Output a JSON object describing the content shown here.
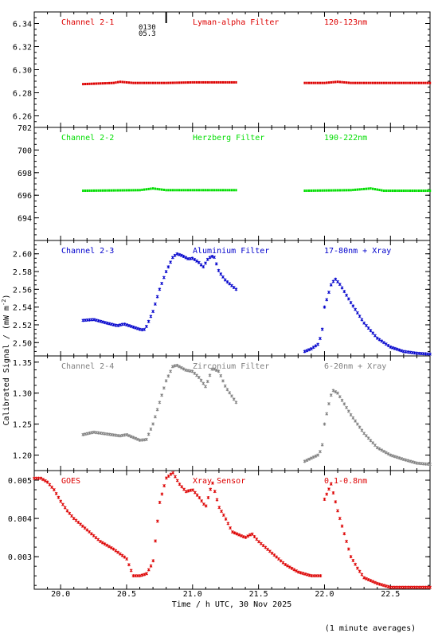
{
  "figure": {
    "ylabel": "Calibrated Signal / (mW m",
    "ylabel_sup": "-2",
    "ylabel_end": ")",
    "xlabel": "Time / h UTC, 30 Nov 2025",
    "footnote": "(1 minute averages)",
    "orbit_label_1": "0130",
    "orbit_label_2": "05.3",
    "orbit_time": 20.8
  },
  "chart_data": [
    {
      "type": "scatter",
      "channel": "Channel 2-1",
      "filter": "Lyman-alpha Filter",
      "band": "120-123nm",
      "color": "#dd0000",
      "xlim": [
        19.8,
        22.8
      ],
      "ylim": [
        6.25,
        6.35
      ],
      "yticks": [
        "6.26",
        "6.28",
        "6.30",
        "6.32",
        "6.34"
      ],
      "segments": [
        {
          "x0": 20.17,
          "x1": 21.33,
          "points": [
            [
              20.17,
              6.2875
            ],
            [
              20.4,
              6.2885
            ],
            [
              20.45,
              6.2895
            ],
            [
              20.55,
              6.2885
            ],
            [
              20.8,
              6.2885
            ],
            [
              21.0,
              6.289
            ],
            [
              21.33,
              6.289
            ]
          ]
        },
        {
          "x0": 21.85,
          "x1": 22.8,
          "points": [
            [
              21.85,
              6.2885
            ],
            [
              22.0,
              6.2885
            ],
            [
              22.1,
              6.2895
            ],
            [
              22.2,
              6.2885
            ],
            [
              22.8,
              6.2885
            ]
          ]
        }
      ]
    },
    {
      "type": "scatter",
      "channel": "Channel 2-2",
      "filter": "Herzberg Filter",
      "band": "190-222nm",
      "color": "#00dd00",
      "xlim": [
        19.8,
        22.8
      ],
      "ylim": [
        692,
        702
      ],
      "yticks": [
        "694",
        "696",
        "698",
        "700",
        "702"
      ],
      "segments": [
        {
          "x0": 20.17,
          "x1": 21.33,
          "points": [
            [
              20.17,
              696.4
            ],
            [
              20.6,
              696.45
            ],
            [
              20.7,
              696.6
            ],
            [
              20.8,
              696.45
            ],
            [
              21.33,
              696.45
            ]
          ]
        },
        {
          "x0": 21.85,
          "x1": 22.8,
          "points": [
            [
              21.85,
              696.4
            ],
            [
              22.2,
              696.45
            ],
            [
              22.35,
              696.6
            ],
            [
              22.45,
              696.4
            ],
            [
              22.8,
              696.4
            ]
          ]
        }
      ]
    },
    {
      "type": "scatter",
      "channel": "Channel 2-3",
      "filter": "Aluminium Filter",
      "band": "17-80nm + Xray",
      "color": "#0000cc",
      "xlim": [
        19.8,
        22.8
      ],
      "ylim": [
        2.485,
        2.615
      ],
      "yticks": [
        "2.50",
        "2.52",
        "2.54",
        "2.56",
        "2.58",
        "2.60"
      ],
      "segments": [
        {
          "x0": 20.17,
          "x1": 21.33,
          "points": [
            [
              20.17,
              2.525
            ],
            [
              20.25,
              2.526
            ],
            [
              20.35,
              2.522
            ],
            [
              20.43,
              2.519
            ],
            [
              20.48,
              2.521
            ],
            [
              20.52,
              2.519
            ],
            [
              20.6,
              2.515
            ],
            [
              20.63,
              2.514
            ],
            [
              20.65,
              2.518
            ],
            [
              20.7,
              2.535
            ],
            [
              20.75,
              2.56
            ],
            [
              20.8,
              2.58
            ],
            [
              20.85,
              2.596
            ],
            [
              20.88,
              2.6
            ],
            [
              20.92,
              2.598
            ],
            [
              20.97,
              2.594
            ],
            [
              21.0,
              2.595
            ],
            [
              21.05,
              2.59
            ],
            [
              21.08,
              2.585
            ],
            [
              21.12,
              2.595
            ],
            [
              21.16,
              2.598
            ],
            [
              21.2,
              2.58
            ],
            [
              21.25,
              2.57
            ],
            [
              21.33,
              2.56
            ]
          ]
        },
        {
          "x0": 21.85,
          "x1": 22.8,
          "points": [
            [
              21.85,
              2.49
            ],
            [
              21.9,
              2.493
            ],
            [
              21.95,
              2.498
            ],
            [
              21.98,
              2.51
            ],
            [
              22.0,
              2.54
            ],
            [
              22.05,
              2.565
            ],
            [
              22.08,
              2.572
            ],
            [
              22.12,
              2.565
            ],
            [
              22.2,
              2.545
            ],
            [
              22.3,
              2.522
            ],
            [
              22.4,
              2.505
            ],
            [
              22.5,
              2.495
            ],
            [
              22.6,
              2.49
            ],
            [
              22.7,
              2.488
            ],
            [
              22.8,
              2.487
            ]
          ]
        }
      ]
    },
    {
      "type": "scatter",
      "channel": "Channel 2-4",
      "filter": "Zirconium Filter",
      "band": "6-20nm + Xray",
      "color": "#808080",
      "xlim": [
        19.8,
        22.8
      ],
      "ylim": [
        1.175,
        1.36
      ],
      "yticks": [
        "1.20",
        "1.25",
        "1.30",
        "1.35"
      ],
      "segments": [
        {
          "x0": 20.17,
          "x1": 21.33,
          "points": [
            [
              20.17,
              1.233
            ],
            [
              20.25,
              1.237
            ],
            [
              20.35,
              1.234
            ],
            [
              20.45,
              1.231
            ],
            [
              20.5,
              1.233
            ],
            [
              20.6,
              1.224
            ],
            [
              20.65,
              1.225
            ],
            [
              20.7,
              1.25
            ],
            [
              20.75,
              1.285
            ],
            [
              20.8,
              1.32
            ],
            [
              20.85,
              1.343
            ],
            [
              20.88,
              1.345
            ],
            [
              20.95,
              1.337
            ],
            [
              21.0,
              1.335
            ],
            [
              21.05,
              1.325
            ],
            [
              21.1,
              1.31
            ],
            [
              21.15,
              1.34
            ],
            [
              21.2,
              1.335
            ],
            [
              21.25,
              1.31
            ],
            [
              21.33,
              1.285
            ]
          ]
        },
        {
          "x0": 21.85,
          "x1": 22.8,
          "points": [
            [
              21.85,
              1.19
            ],
            [
              21.9,
              1.195
            ],
            [
              21.95,
              1.2
            ],
            [
              21.98,
              1.21
            ],
            [
              22.0,
              1.25
            ],
            [
              22.03,
              1.28
            ],
            [
              22.06,
              1.305
            ],
            [
              22.1,
              1.3
            ],
            [
              22.2,
              1.265
            ],
            [
              22.3,
              1.235
            ],
            [
              22.4,
              1.212
            ],
            [
              22.5,
              1.2
            ],
            [
              22.6,
              1.193
            ],
            [
              22.7,
              1.187
            ],
            [
              22.8,
              1.185
            ]
          ]
        }
      ]
    },
    {
      "type": "scatter",
      "channel": "GOES",
      "filter": "Xray Sensor",
      "band": "0.1-0.8nm",
      "color": "#dd0000",
      "xlim": [
        19.8,
        22.8
      ],
      "ylim": [
        0.00215,
        0.00525
      ],
      "yticks": [
        "0.003",
        "0.004",
        "0.005"
      ],
      "segments": [
        {
          "x0": 19.8,
          "x1": 21.97,
          "points": [
            [
              19.8,
              0.00505
            ],
            [
              19.85,
              0.00505
            ],
            [
              19.9,
              0.00495
            ],
            [
              19.95,
              0.00475
            ],
            [
              20.0,
              0.00445
            ],
            [
              20.05,
              0.0042
            ],
            [
              20.1,
              0.004
            ],
            [
              20.2,
              0.0037
            ],
            [
              20.3,
              0.0034
            ],
            [
              20.4,
              0.0032
            ],
            [
              20.5,
              0.00295
            ],
            [
              20.55,
              0.0025
            ],
            [
              20.6,
              0.0025
            ],
            [
              20.65,
              0.00255
            ],
            [
              20.7,
              0.00285
            ],
            [
              20.75,
              0.0044
            ],
            [
              20.8,
              0.00505
            ],
            [
              20.85,
              0.0052
            ],
            [
              20.9,
              0.0049
            ],
            [
              20.95,
              0.0047
            ],
            [
              21.0,
              0.00475
            ],
            [
              21.05,
              0.00455
            ],
            [
              21.1,
              0.0043
            ],
            [
              21.15,
              0.00495
            ],
            [
              21.2,
              0.0043
            ],
            [
              21.25,
              0.004
            ],
            [
              21.3,
              0.00365
            ],
            [
              21.4,
              0.0035
            ],
            [
              21.45,
              0.0036
            ],
            [
              21.5,
              0.0034
            ],
            [
              21.6,
              0.0031
            ],
            [
              21.7,
              0.0028
            ],
            [
              21.8,
              0.0026
            ],
            [
              21.9,
              0.0025
            ],
            [
              21.97,
              0.0025
            ]
          ]
        },
        {
          "x0": 22.0,
          "x1": 22.8,
          "points": [
            [
              22.0,
              0.0045
            ],
            [
              22.05,
              0.0049
            ],
            [
              22.1,
              0.0042
            ],
            [
              22.15,
              0.0036
            ],
            [
              22.2,
              0.003
            ],
            [
              22.25,
              0.0027
            ],
            [
              22.3,
              0.00245
            ],
            [
              22.4,
              0.0023
            ],
            [
              22.5,
              0.0022
            ],
            [
              22.6,
              0.0022
            ],
            [
              22.7,
              0.0022
            ],
            [
              22.8,
              0.0022
            ]
          ]
        }
      ]
    }
  ],
  "xaxis": {
    "ticks": [
      "20.0",
      "20.5",
      "21.0",
      "21.5",
      "22.0",
      "22.5"
    ]
  }
}
